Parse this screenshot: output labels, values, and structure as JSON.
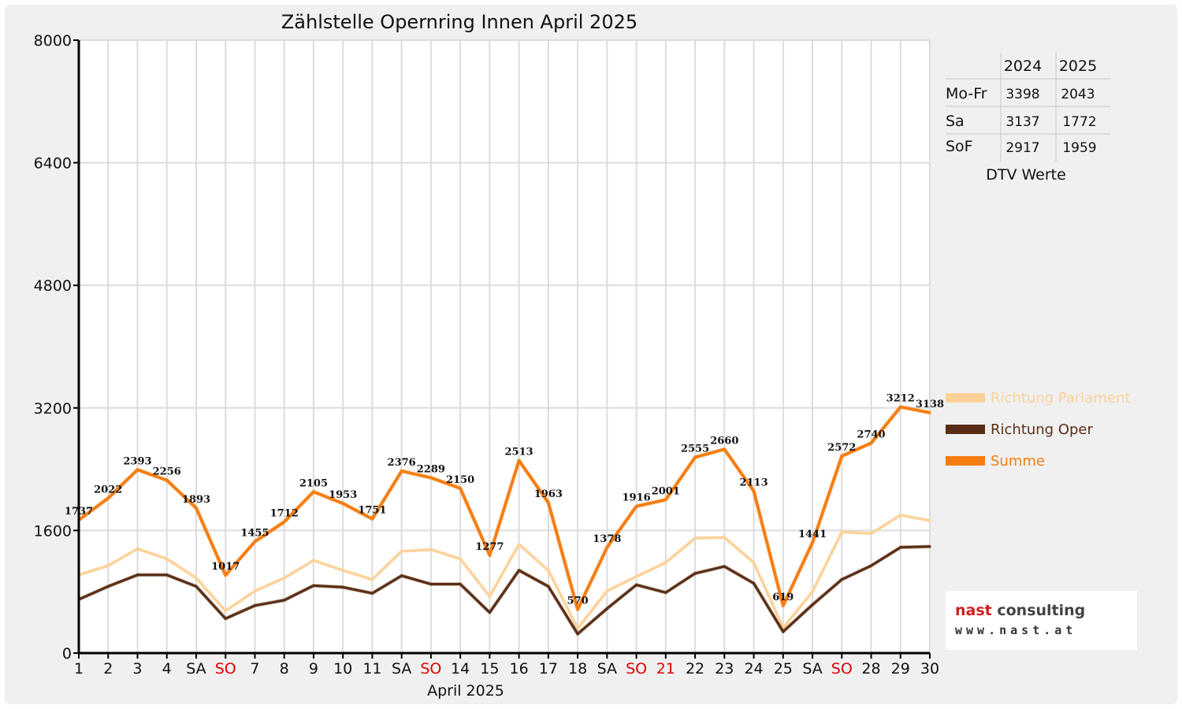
{
  "chart_data": {
    "type": "line",
    "title": "Zählstelle Opernring Innen April 2025",
    "xlabel": "April 2025",
    "ylabel": "",
    "ylim": [
      0,
      8000
    ],
    "yticks": [
      "0",
      "1600",
      "3200",
      "4800",
      "6400",
      "8000"
    ],
    "grid": true,
    "legend_position": "right",
    "categories": [
      "1",
      "2",
      "3",
      "4",
      "SA",
      "SO",
      "7",
      "8",
      "9",
      "10",
      "11",
      "SA",
      "SO",
      "14",
      "15",
      "16",
      "17",
      "18",
      "SA",
      "SO",
      "21",
      "22",
      "23",
      "24",
      "25",
      "SA",
      "SO",
      "28",
      "29",
      "30"
    ],
    "highlight_categories": [
      5,
      12,
      19,
      20,
      26
    ],
    "series": [
      {
        "name": "Richtung Parlament",
        "color": "#fcd29a",
        "values": [
          1020,
          1140,
          1360,
          1230,
          980,
          550,
          810,
          980,
          1210,
          1080,
          960,
          1330,
          1350,
          1230,
          740,
          1420,
          1080,
          320,
          810,
          1000,
          1180,
          1500,
          1510,
          1180,
          330,
          800,
          1580,
          1560,
          1800,
          1730
        ]
      },
      {
        "name": "Richtung Oper",
        "color": "#5a2e15",
        "values": [
          700,
          870,
          1020,
          1020,
          870,
          450,
          620,
          690,
          880,
          860,
          780,
          1010,
          900,
          900,
          530,
          1080,
          870,
          250,
          580,
          890,
          790,
          1040,
          1130,
          910,
          280,
          630,
          960,
          1140,
          1380,
          1390
        ]
      },
      {
        "name": "Summe",
        "color": "#f57d10",
        "values": [
          1737,
          2022,
          2393,
          2256,
          1893,
          1017,
          1455,
          1712,
          2105,
          1953,
          1751,
          2376,
          2289,
          2150,
          1277,
          2513,
          1963,
          570,
          1378,
          1916,
          2001,
          2555,
          2660,
          2113,
          619,
          1441,
          2572,
          2740,
          3212,
          3138
        ],
        "labels": [
          "1737",
          "2022",
          "2393",
          "2256",
          "1893",
          "1017",
          "1455",
          "1712",
          "2105",
          "1953",
          "1751",
          "2376",
          "2289",
          "2150",
          "1277",
          "2513",
          "1963",
          "570",
          "1378",
          "1916",
          "2001",
          "2555",
          "2660",
          "2113",
          "619",
          "1441",
          "2572",
          "2740",
          "3212",
          "3138"
        ]
      }
    ]
  },
  "dtv_table": {
    "caption": "DTV Werte",
    "headers": [
      "2024",
      "2025"
    ],
    "rows": [
      {
        "label": "Mo-Fr",
        "v2024": "3398",
        "v2025": "2043"
      },
      {
        "label": "Sa",
        "v2024": "3137",
        "v2025": "1772"
      },
      {
        "label": "SoF",
        "v2024": "2917",
        "v2025": "1959"
      }
    ]
  },
  "logo": {
    "name_part1": "nast",
    "name_part2": " consulting",
    "url": "www.nast.at"
  },
  "colors": {
    "accent_red": "#e00000",
    "grid": "#dcdcdc",
    "axis": "#000000"
  }
}
